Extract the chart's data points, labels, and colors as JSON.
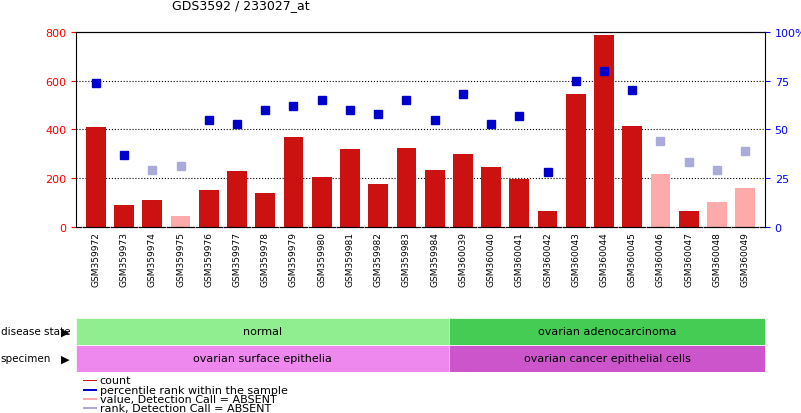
{
  "title": "GDS3592 / 233027_at",
  "samples": [
    "GSM359972",
    "GSM359973",
    "GSM359974",
    "GSM359975",
    "GSM359976",
    "GSM359977",
    "GSM359978",
    "GSM359979",
    "GSM359980",
    "GSM359981",
    "GSM359982",
    "GSM359983",
    "GSM359984",
    "GSM360039",
    "GSM360040",
    "GSM360041",
    "GSM360042",
    "GSM360043",
    "GSM360044",
    "GSM360045",
    "GSM360046",
    "GSM360047",
    "GSM360048",
    "GSM360049"
  ],
  "count_values": [
    410,
    90,
    110,
    null,
    150,
    230,
    140,
    370,
    205,
    320,
    175,
    325,
    235,
    300,
    245,
    195,
    65,
    545,
    790,
    415,
    null,
    65,
    null,
    null
  ],
  "count_absent": [
    false,
    false,
    false,
    true,
    false,
    false,
    false,
    false,
    false,
    false,
    false,
    false,
    false,
    false,
    false,
    false,
    false,
    false,
    false,
    false,
    true,
    false,
    true,
    true
  ],
  "count_absent_values": [
    null,
    null,
    null,
    45,
    null,
    null,
    null,
    null,
    null,
    null,
    null,
    null,
    null,
    null,
    null,
    null,
    null,
    null,
    null,
    null,
    215,
    null,
    100,
    160
  ],
  "rank_values": [
    74,
    37,
    null,
    null,
    55,
    53,
    60,
    62,
    65,
    60,
    58,
    65,
    55,
    68,
    53,
    57,
    28,
    75,
    80,
    70,
    null,
    null,
    null,
    null
  ],
  "rank_absent": [
    false,
    false,
    true,
    true,
    false,
    false,
    false,
    false,
    false,
    false,
    false,
    false,
    false,
    false,
    false,
    false,
    false,
    false,
    false,
    false,
    true,
    true,
    true,
    true
  ],
  "rank_absent_values": [
    null,
    null,
    29,
    31,
    null,
    null,
    null,
    null,
    null,
    null,
    null,
    null,
    null,
    null,
    null,
    null,
    null,
    null,
    null,
    null,
    44,
    33,
    29,
    39
  ],
  "disease_state_groups": [
    {
      "label": "normal",
      "start": 0,
      "end": 13,
      "color": "#90EE90"
    },
    {
      "label": "ovarian adenocarcinoma",
      "start": 13,
      "end": 24,
      "color": "#44CC55"
    }
  ],
  "specimen_groups": [
    {
      "label": "ovarian surface epithelia",
      "start": 0,
      "end": 13,
      "color": "#EE88EE"
    },
    {
      "label": "ovarian cancer epithelial cells",
      "start": 13,
      "end": 24,
      "color": "#CC55CC"
    }
  ],
  "ylim_left": [
    0,
    800
  ],
  "ylim_right": [
    0,
    100
  ],
  "yticks_left": [
    0,
    200,
    400,
    600,
    800
  ],
  "yticks_right": [
    0,
    25,
    50,
    75,
    100
  ],
  "bar_color_present": "#CC1111",
  "bar_color_absent": "#FFAAAA",
  "dot_color_present": "#0000CC",
  "dot_color_absent": "#AAAADD",
  "xtick_bg": "#CCCCCC",
  "legend_items": [
    {
      "color": "#CC1111",
      "label": "count"
    },
    {
      "color": "#0000CC",
      "label": "percentile rank within the sample"
    },
    {
      "color": "#FFAAAA",
      "label": "value, Detection Call = ABSENT"
    },
    {
      "color": "#AAAADD",
      "label": "rank, Detection Call = ABSENT"
    }
  ]
}
